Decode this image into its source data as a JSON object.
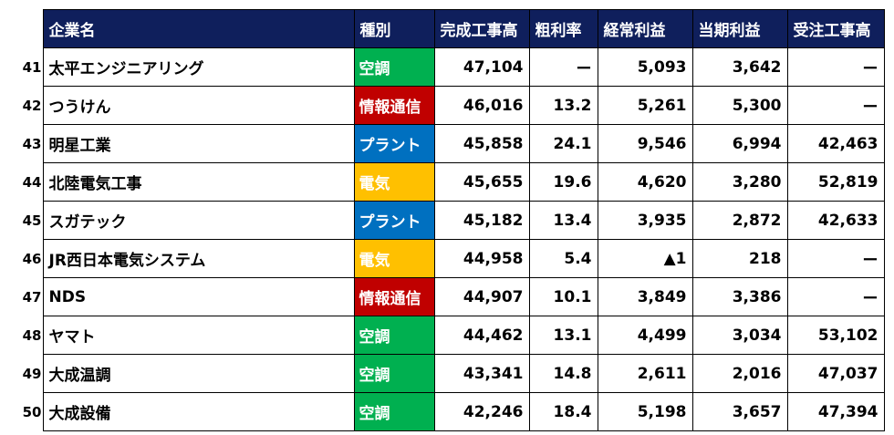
{
  "headers": {
    "company": "企業名",
    "category": "種別",
    "completed": "完成工事高",
    "gross_margin": "粗利率",
    "ordinary_profit": "経常利益",
    "net_profit": "当期利益",
    "orders": "受注工事高"
  },
  "colors": {
    "header_bg": "#0f1f5c",
    "空調": "#00b050",
    "情報通信": "#c00000",
    "プラント": "#0070c0",
    "電気": "#ffc000"
  },
  "rows": [
    {
      "rank": "41",
      "name": "太平エンジニアリング",
      "category": "空調",
      "completed": "47,104",
      "gross_margin": "ー",
      "ordinary_profit": "5,093",
      "net_profit": "3,642",
      "orders": "ー"
    },
    {
      "rank": "42",
      "name": "つうけん",
      "category": "情報通信",
      "completed": "46,016",
      "gross_margin": "13.2",
      "ordinary_profit": "5,261",
      "net_profit": "5,300",
      "orders": "ー"
    },
    {
      "rank": "43",
      "name": "明星工業",
      "category": "プラント",
      "completed": "45,858",
      "gross_margin": "24.1",
      "ordinary_profit": "9,546",
      "net_profit": "6,994",
      "orders": "42,463"
    },
    {
      "rank": "44",
      "name": "北陸電気工事",
      "category": "電気",
      "completed": "45,655",
      "gross_margin": "19.6",
      "ordinary_profit": "4,620",
      "net_profit": "3,280",
      "orders": "52,819"
    },
    {
      "rank": "45",
      "name": "スガテック",
      "category": "プラント",
      "completed": "45,182",
      "gross_margin": "13.4",
      "ordinary_profit": "3,935",
      "net_profit": "2,872",
      "orders": "42,633"
    },
    {
      "rank": "46",
      "name": "JR西日本電気システム",
      "category": "電気",
      "completed": "44,958",
      "gross_margin": "5.4",
      "ordinary_profit": "▲1",
      "net_profit": "218",
      "orders": "ー"
    },
    {
      "rank": "47",
      "name": "NDS",
      "category": "情報通信",
      "completed": "44,907",
      "gross_margin": "10.1",
      "ordinary_profit": "3,849",
      "net_profit": "3,386",
      "orders": "ー"
    },
    {
      "rank": "48",
      "name": "ヤマト",
      "category": "空調",
      "completed": "44,462",
      "gross_margin": "13.1",
      "ordinary_profit": "4,499",
      "net_profit": "3,034",
      "orders": "53,102"
    },
    {
      "rank": "49",
      "name": "大成温調",
      "category": "空調",
      "completed": "43,341",
      "gross_margin": "14.8",
      "ordinary_profit": "2,611",
      "net_profit": "2,016",
      "orders": "47,037"
    },
    {
      "rank": "50",
      "name": "大成設備",
      "category": "空調",
      "completed": "42,246",
      "gross_margin": "18.4",
      "ordinary_profit": "5,198",
      "net_profit": "3,657",
      "orders": "47,394"
    }
  ]
}
